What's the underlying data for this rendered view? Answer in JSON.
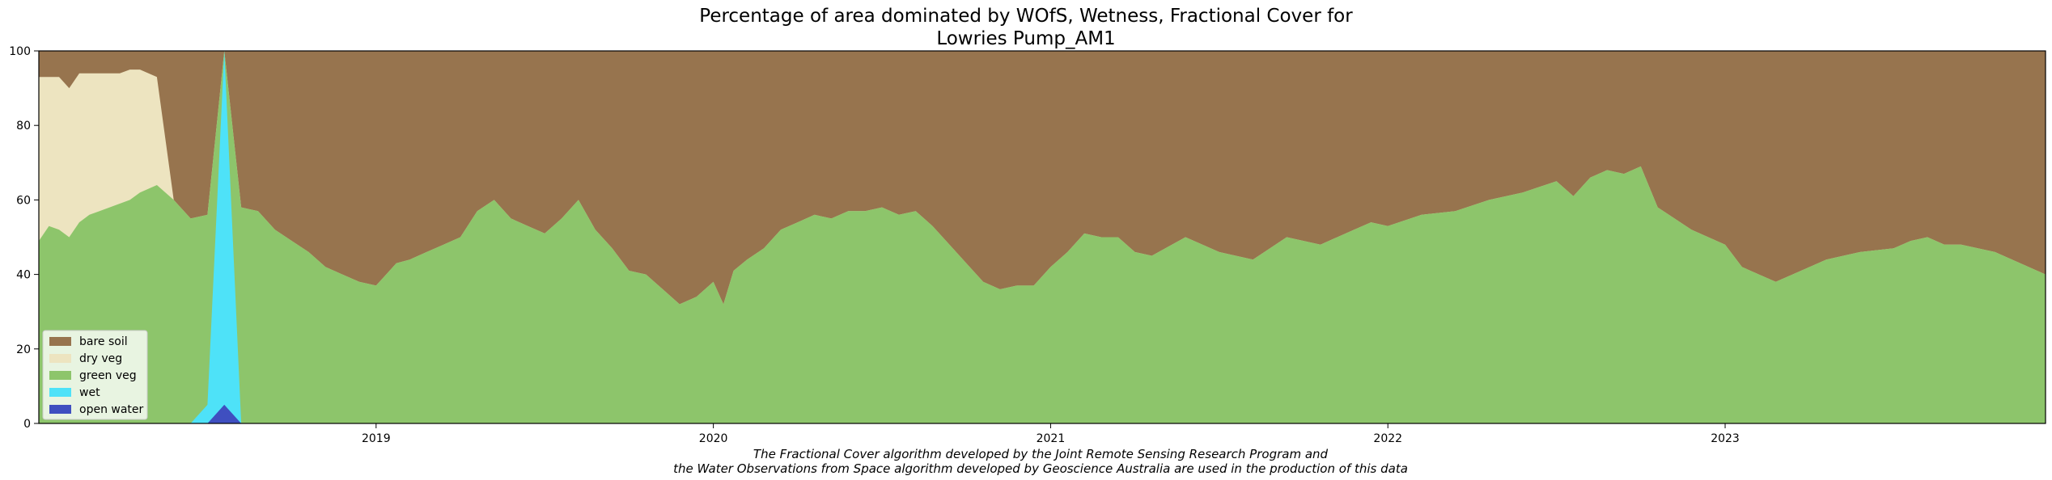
{
  "chart_data": {
    "type": "area",
    "title_line1": "Percentage of area dominated by WOfS, Wetness, Fractional Cover for",
    "title_line2": "Lowries Pump_AM1",
    "footnote_line1": "The Fractional Cover algorithm developed by the Joint Remote Sensing Research Program and",
    "footnote_line2": "the Water Observations from Space algorithm developed by Geoscience Australia are used in the production of this data",
    "xlabel": "",
    "ylabel": "",
    "ylim": [
      0,
      100
    ],
    "xlim": [
      2018.0,
      2023.95
    ],
    "y_ticks": [
      0,
      20,
      40,
      60,
      80,
      100
    ],
    "x_ticks": [
      {
        "value": 2019.0,
        "label": "2019"
      },
      {
        "value": 2020.0,
        "label": "2020"
      },
      {
        "value": 2021.0,
        "label": "2021"
      },
      {
        "value": 2022.0,
        "label": "2022"
      },
      {
        "value": 2023.0,
        "label": "2023"
      }
    ],
    "grid": false,
    "legend_position": "lower-left",
    "x": [
      2018.0,
      2018.03,
      2018.06,
      2018.09,
      2018.12,
      2018.15,
      2018.18,
      2018.21,
      2018.24,
      2018.27,
      2018.3,
      2018.35,
      2018.4,
      2018.45,
      2018.5,
      2018.55,
      2018.6,
      2018.65,
      2018.7,
      2018.75,
      2018.8,
      2018.85,
      2018.9,
      2018.95,
      2019.0,
      2019.03,
      2019.06,
      2019.1,
      2019.15,
      2019.2,
      2019.25,
      2019.3,
      2019.35,
      2019.4,
      2019.45,
      2019.5,
      2019.55,
      2019.6,
      2019.65,
      2019.7,
      2019.75,
      2019.8,
      2019.85,
      2019.9,
      2019.95,
      2020.0,
      2020.03,
      2020.06,
      2020.1,
      2020.15,
      2020.2,
      2020.25,
      2020.3,
      2020.35,
      2020.4,
      2020.45,
      2020.5,
      2020.55,
      2020.6,
      2020.65,
      2020.7,
      2020.75,
      2020.8,
      2020.85,
      2020.9,
      2020.95,
      2021.0,
      2021.05,
      2021.1,
      2021.15,
      2021.2,
      2021.25,
      2021.3,
      2021.4,
      2021.5,
      2021.6,
      2021.7,
      2021.8,
      2021.85,
      2021.9,
      2021.95,
      2022.0,
      2022.1,
      2022.2,
      2022.3,
      2022.4,
      2022.5,
      2022.55,
      2022.6,
      2022.65,
      2022.7,
      2022.75,
      2022.8,
      2022.85,
      2022.9,
      2022.95,
      2023.0,
      2023.05,
      2023.1,
      2023.15,
      2023.2,
      2023.3,
      2023.4,
      2023.5,
      2023.55,
      2023.6,
      2023.65,
      2023.7,
      2023.8,
      2023.95
    ],
    "series": [
      {
        "name": "open water",
        "color": "#3F4FC0",
        "values": [
          0,
          0,
          0,
          0,
          0,
          0,
          0,
          0,
          0,
          0,
          0,
          0,
          0,
          0,
          0,
          5,
          0,
          0,
          0,
          0,
          0,
          0,
          0,
          0,
          0,
          0,
          0,
          0,
          0,
          0,
          0,
          0,
          0,
          0,
          0,
          0,
          0,
          0,
          0,
          0,
          0,
          0,
          0,
          0,
          0,
          0,
          0,
          0,
          0,
          0,
          0,
          0,
          0,
          0,
          0,
          0,
          0,
          0,
          0,
          0,
          0,
          0,
          0,
          0,
          0,
          0,
          0,
          0,
          0,
          0,
          0,
          0,
          0,
          0,
          0,
          0,
          0,
          0,
          0,
          0,
          0,
          0,
          0,
          0,
          0,
          0,
          0,
          0,
          0,
          0,
          0,
          0,
          0,
          0,
          0,
          0,
          0,
          0,
          0,
          0,
          0,
          0,
          0,
          0,
          0,
          0,
          0,
          0,
          0,
          0
        ]
      },
      {
        "name": "wet",
        "color": "#4EE2F8",
        "values": [
          0,
          0,
          0,
          0,
          0,
          0,
          0,
          0,
          0,
          0,
          0,
          0,
          0,
          0,
          5,
          95,
          0,
          0,
          0,
          0,
          0,
          0,
          0,
          0,
          0,
          0,
          0,
          0,
          0,
          0,
          0,
          0,
          0,
          0,
          0,
          0,
          0,
          0,
          0,
          0,
          0,
          0,
          0,
          0,
          0,
          0,
          0,
          0,
          0,
          0,
          0,
          0,
          0,
          0,
          0,
          0,
          0,
          0,
          0,
          0,
          0,
          0,
          0,
          0,
          0,
          0,
          0,
          0,
          0,
          0,
          0,
          0,
          0,
          0,
          0,
          0,
          0,
          0,
          0,
          0,
          0,
          0,
          0,
          0,
          0,
          0,
          0,
          0,
          0,
          0,
          0,
          0,
          0,
          0,
          0,
          0,
          0,
          0,
          0,
          0,
          0,
          0,
          0,
          0,
          0,
          0,
          0,
          0,
          0,
          0
        ]
      },
      {
        "name": "green veg",
        "color": "#8DC56B",
        "values": [
          49,
          53,
          52,
          50,
          54,
          56,
          57,
          58,
          59,
          60,
          62,
          64,
          60,
          55,
          51,
          0,
          58,
          57,
          52,
          49,
          46,
          42,
          40,
          38,
          37,
          40,
          43,
          44,
          46,
          48,
          50,
          57,
          60,
          55,
          53,
          51,
          55,
          60,
          52,
          47,
          41,
          40,
          36,
          32,
          34,
          38,
          32,
          41,
          44,
          47,
          52,
          54,
          56,
          55,
          57,
          57,
          58,
          56,
          57,
          53,
          48,
          43,
          38,
          36,
          37,
          37,
          42,
          46,
          51,
          50,
          50,
          46,
          45,
          50,
          46,
          44,
          50,
          48,
          50,
          52,
          54,
          53,
          56,
          57,
          60,
          62,
          65,
          61,
          66,
          68,
          67,
          69,
          58,
          55,
          52,
          50,
          48,
          42,
          40,
          38,
          40,
          44,
          46,
          47,
          49,
          50,
          48,
          48,
          46,
          40
        ]
      },
      {
        "name": "dry veg",
        "color": "#EDE4C0",
        "values": [
          44,
          40,
          41,
          40,
          40,
          38,
          37,
          36,
          35,
          35,
          33,
          29,
          0,
          0,
          0,
          0,
          0,
          0,
          0,
          0,
          0,
          0,
          0,
          0,
          0,
          0,
          0,
          0,
          0,
          0,
          0,
          0,
          0,
          0,
          0,
          0,
          0,
          0,
          0,
          0,
          0,
          0,
          0,
          0,
          0,
          0,
          0,
          0,
          0,
          0,
          0,
          0,
          0,
          0,
          0,
          0,
          0,
          0,
          0,
          0,
          0,
          0,
          0,
          0,
          0,
          0,
          0,
          0,
          0,
          0,
          0,
          0,
          0,
          0,
          0,
          0,
          0,
          0,
          0,
          0,
          0,
          0,
          0,
          0,
          0,
          0,
          0,
          0,
          0,
          0,
          0,
          0,
          0,
          0,
          0,
          0,
          0,
          0,
          0,
          0,
          0,
          0,
          0,
          0,
          0,
          0,
          0,
          0,
          0,
          0
        ]
      },
      {
        "name": "bare soil",
        "color": "#97744E",
        "values": [
          7,
          7,
          7,
          10,
          6,
          6,
          6,
          6,
          6,
          5,
          5,
          7,
          0,
          0,
          0,
          0,
          0,
          0,
          0,
          0,
          0,
          0,
          0,
          0,
          0,
          0,
          0,
          0,
          0,
          0,
          0,
          0,
          0,
          0,
          0,
          0,
          0,
          0,
          0,
          0,
          0,
          0,
          0,
          0,
          0,
          0,
          0,
          0,
          0,
          0,
          0,
          0,
          0,
          0,
          0,
          0,
          0,
          0,
          0,
          0,
          0,
          0,
          0,
          0,
          0,
          0,
          0,
          0,
          0,
          0,
          0,
          0,
          0,
          0,
          0,
          0,
          0,
          0,
          0,
          0,
          0,
          0,
          0,
          0,
          0,
          0,
          0,
          0,
          0,
          0,
          0,
          0,
          0,
          0,
          0,
          0,
          0,
          0,
          0,
          0,
          0,
          0,
          0,
          0,
          0,
          0,
          0,
          0,
          0,
          0
        ]
      }
    ],
    "wet_top": [
      0,
      0,
      0,
      0,
      0,
      0,
      0,
      0,
      0,
      0,
      0,
      0,
      0,
      0,
      5,
      100,
      0,
      0,
      0,
      0,
      0,
      0,
      0,
      0,
      0,
      0,
      0,
      0,
      0,
      0,
      0,
      0,
      0,
      0,
      0,
      0,
      0,
      0,
      0,
      0,
      0,
      0,
      0,
      0,
      0,
      0,
      0,
      0,
      0,
      0,
      0,
      0,
      0,
      0,
      0,
      0,
      0,
      0,
      0,
      0,
      0,
      0,
      0,
      0,
      0,
      0,
      0,
      0,
      0,
      0,
      0,
      0,
      0,
      0,
      0,
      0,
      0,
      0,
      0,
      0,
      0,
      0,
      0,
      0,
      0,
      0,
      0,
      0,
      0,
      0,
      0,
      0,
      0,
      0,
      0,
      0,
      0,
      0,
      0,
      0,
      0,
      0,
      0,
      0,
      0,
      0,
      0,
      0,
      0,
      0
    ],
    "green_top": [
      49,
      53,
      52,
      50,
      54,
      56,
      57,
      58,
      59,
      60,
      62,
      64,
      60,
      55,
      56,
      100,
      58,
      57,
      52,
      49,
      46,
      42,
      40,
      38,
      37,
      40,
      43,
      44,
      46,
      48,
      50,
      57,
      60,
      55,
      53,
      51,
      55,
      60,
      52,
      47,
      41,
      40,
      36,
      32,
      34,
      38,
      32,
      41,
      44,
      47,
      52,
      54,
      56,
      55,
      57,
      57,
      58,
      56,
      57,
      53,
      48,
      43,
      38,
      36,
      37,
      37,
      42,
      46,
      51,
      50,
      50,
      46,
      45,
      50,
      46,
      44,
      50,
      48,
      50,
      52,
      54,
      53,
      56,
      57,
      60,
      62,
      65,
      61,
      66,
      68,
      67,
      69,
      58,
      55,
      52,
      50,
      48,
      42,
      40,
      38,
      40,
      44,
      46,
      47,
      49,
      50,
      48,
      48,
      46,
      40
    ]
  },
  "legend": [
    {
      "label": "bare soil",
      "color": "#97744E"
    },
    {
      "label": "dry veg",
      "color": "#EDE4C0"
    },
    {
      "label": "green veg",
      "color": "#8DC56B"
    },
    {
      "label": "wet",
      "color": "#4EE2F8"
    },
    {
      "label": "open water",
      "color": "#3F4FC0"
    }
  ]
}
